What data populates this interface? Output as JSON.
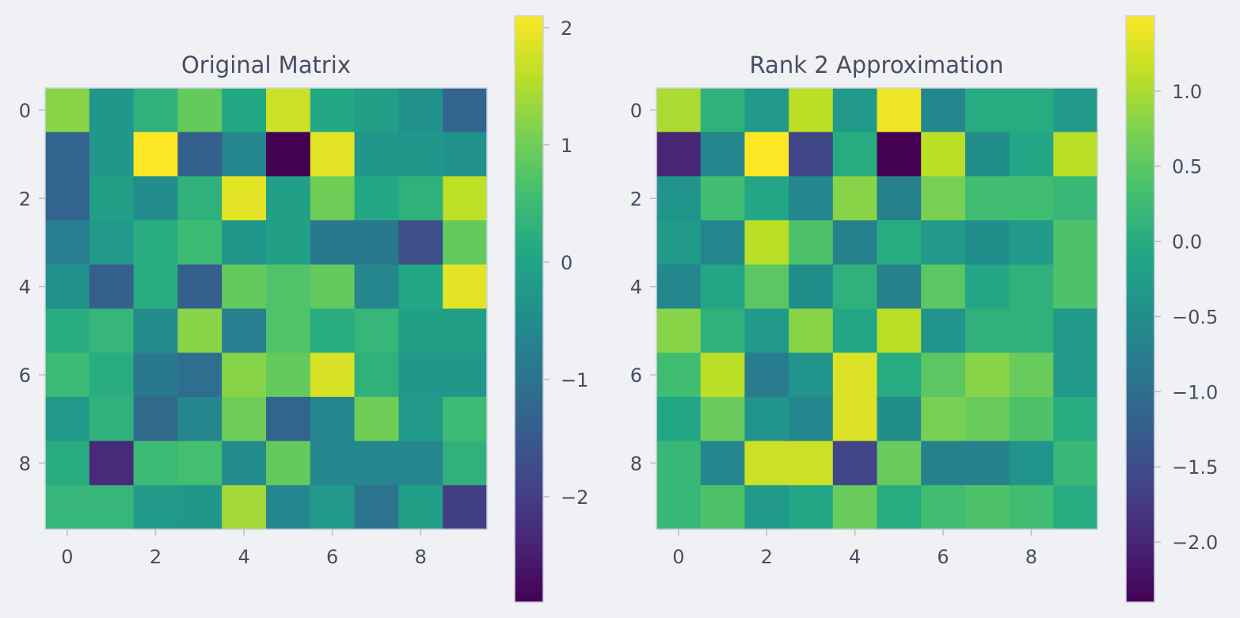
{
  "colors": {
    "background": "#f0f1f5",
    "text": "#4a4c63",
    "frame": "#cfd3e0",
    "colormap": "viridis"
  },
  "chart_data": [
    {
      "type": "heatmap",
      "title": "Original Matrix",
      "xlabel": "",
      "ylabel": "",
      "colormap": "viridis",
      "x_ticks": [
        0,
        2,
        4,
        6,
        8
      ],
      "y_ticks": [
        0,
        2,
        4,
        6,
        8
      ],
      "x_tick_labels": [
        "0",
        "2",
        "4",
        "6",
        "8"
      ],
      "y_tick_labels": [
        "0",
        "2",
        "4",
        "6",
        "8"
      ],
      "vmin": -2.9,
      "vmax": 2.1,
      "colorbar_ticks": [
        -2,
        -1,
        0,
        1,
        2
      ],
      "colorbar_tick_labels": [
        "−2",
        "−1",
        "0",
        "1",
        "2"
      ],
      "values": [
        [
          1.2,
          -0.3,
          0.3,
          0.9,
          0.1,
          1.7,
          0.1,
          -0.1,
          -0.4,
          -1.3
        ],
        [
          -1.3,
          -0.3,
          2.1,
          -1.4,
          -0.6,
          -2.9,
          1.9,
          -0.3,
          -0.3,
          -0.4
        ],
        [
          -1.3,
          -0.1,
          -0.5,
          0.3,
          1.9,
          -0.1,
          1.0,
          0.1,
          0.3,
          1.6
        ],
        [
          -0.8,
          -0.2,
          0.2,
          0.5,
          -0.3,
          -0.1,
          -0.9,
          -0.9,
          -1.7,
          0.9
        ],
        [
          -0.4,
          -1.4,
          0.2,
          -1.4,
          0.9,
          0.7,
          0.9,
          -0.6,
          0.1,
          1.9
        ],
        [
          0.2,
          0.4,
          -0.5,
          1.2,
          -0.8,
          0.7,
          0.2,
          0.4,
          -0.1,
          -0.1
        ],
        [
          0.5,
          0.2,
          -0.9,
          -1.1,
          1.2,
          0.9,
          1.8,
          0.3,
          -0.3,
          -0.3
        ],
        [
          -0.2,
          0.3,
          -1.2,
          -0.6,
          1.0,
          -1.3,
          -0.6,
          1.0,
          -0.2,
          0.5
        ],
        [
          0.2,
          -2.3,
          0.5,
          0.6,
          -0.5,
          0.9,
          -0.6,
          -0.6,
          -0.6,
          0.3
        ],
        [
          0.4,
          0.4,
          -0.2,
          -0.3,
          1.4,
          -0.6,
          -0.2,
          -1.0,
          -0.1,
          -2.0
        ]
      ]
    },
    {
      "type": "heatmap",
      "title": "Rank 2 Approximation",
      "xlabel": "",
      "ylabel": "",
      "colormap": "viridis",
      "x_ticks": [
        0,
        2,
        4,
        6,
        8
      ],
      "y_ticks": [
        0,
        2,
        4,
        6,
        8
      ],
      "x_tick_labels": [
        "0",
        "2",
        "4",
        "6",
        "8"
      ],
      "y_tick_labels": [
        "0",
        "2",
        "4",
        "6",
        "8"
      ],
      "vmin": -2.4,
      "vmax": 1.5,
      "colorbar_ticks": [
        -2.0,
        -1.5,
        -1.0,
        -0.5,
        0.0,
        0.5,
        1.0
      ],
      "colorbar_tick_labels": [
        "−2.0",
        "−1.5",
        "−1.0",
        "−0.5",
        "0.0",
        "0.5",
        "1.0"
      ],
      "values": [
        [
          1.0,
          0.1,
          -0.3,
          1.1,
          -0.3,
          1.4,
          -0.6,
          0.0,
          0.0,
          -0.3
        ],
        [
          -2.0,
          -0.6,
          1.5,
          -1.6,
          0.0,
          -2.4,
          1.1,
          -0.5,
          -0.1,
          1.1
        ],
        [
          -0.4,
          0.3,
          -0.1,
          -0.6,
          0.8,
          -0.7,
          0.7,
          0.3,
          0.3,
          0.2
        ],
        [
          -0.3,
          -0.6,
          1.1,
          0.4,
          -0.7,
          0.0,
          -0.3,
          -0.5,
          -0.3,
          0.4
        ],
        [
          -0.6,
          -0.1,
          0.5,
          -0.5,
          0.1,
          -0.7,
          0.5,
          -0.1,
          0.1,
          0.4
        ],
        [
          0.8,
          0.1,
          -0.3,
          0.8,
          -0.1,
          1.1,
          -0.4,
          0.1,
          0.1,
          -0.3
        ],
        [
          0.3,
          1.1,
          -0.8,
          -0.4,
          1.3,
          0.0,
          0.5,
          0.8,
          0.6,
          -0.3
        ],
        [
          -0.1,
          0.6,
          -0.4,
          -0.6,
          1.3,
          -0.5,
          0.7,
          0.6,
          0.4,
          0.0
        ],
        [
          0.2,
          -0.6,
          1.2,
          1.2,
          -1.6,
          0.6,
          -0.7,
          -0.7,
          -0.4,
          0.2
        ],
        [
          0.2,
          0.4,
          -0.3,
          -0.1,
          0.6,
          0.0,
          0.3,
          0.4,
          0.3,
          0.0
        ]
      ]
    }
  ]
}
